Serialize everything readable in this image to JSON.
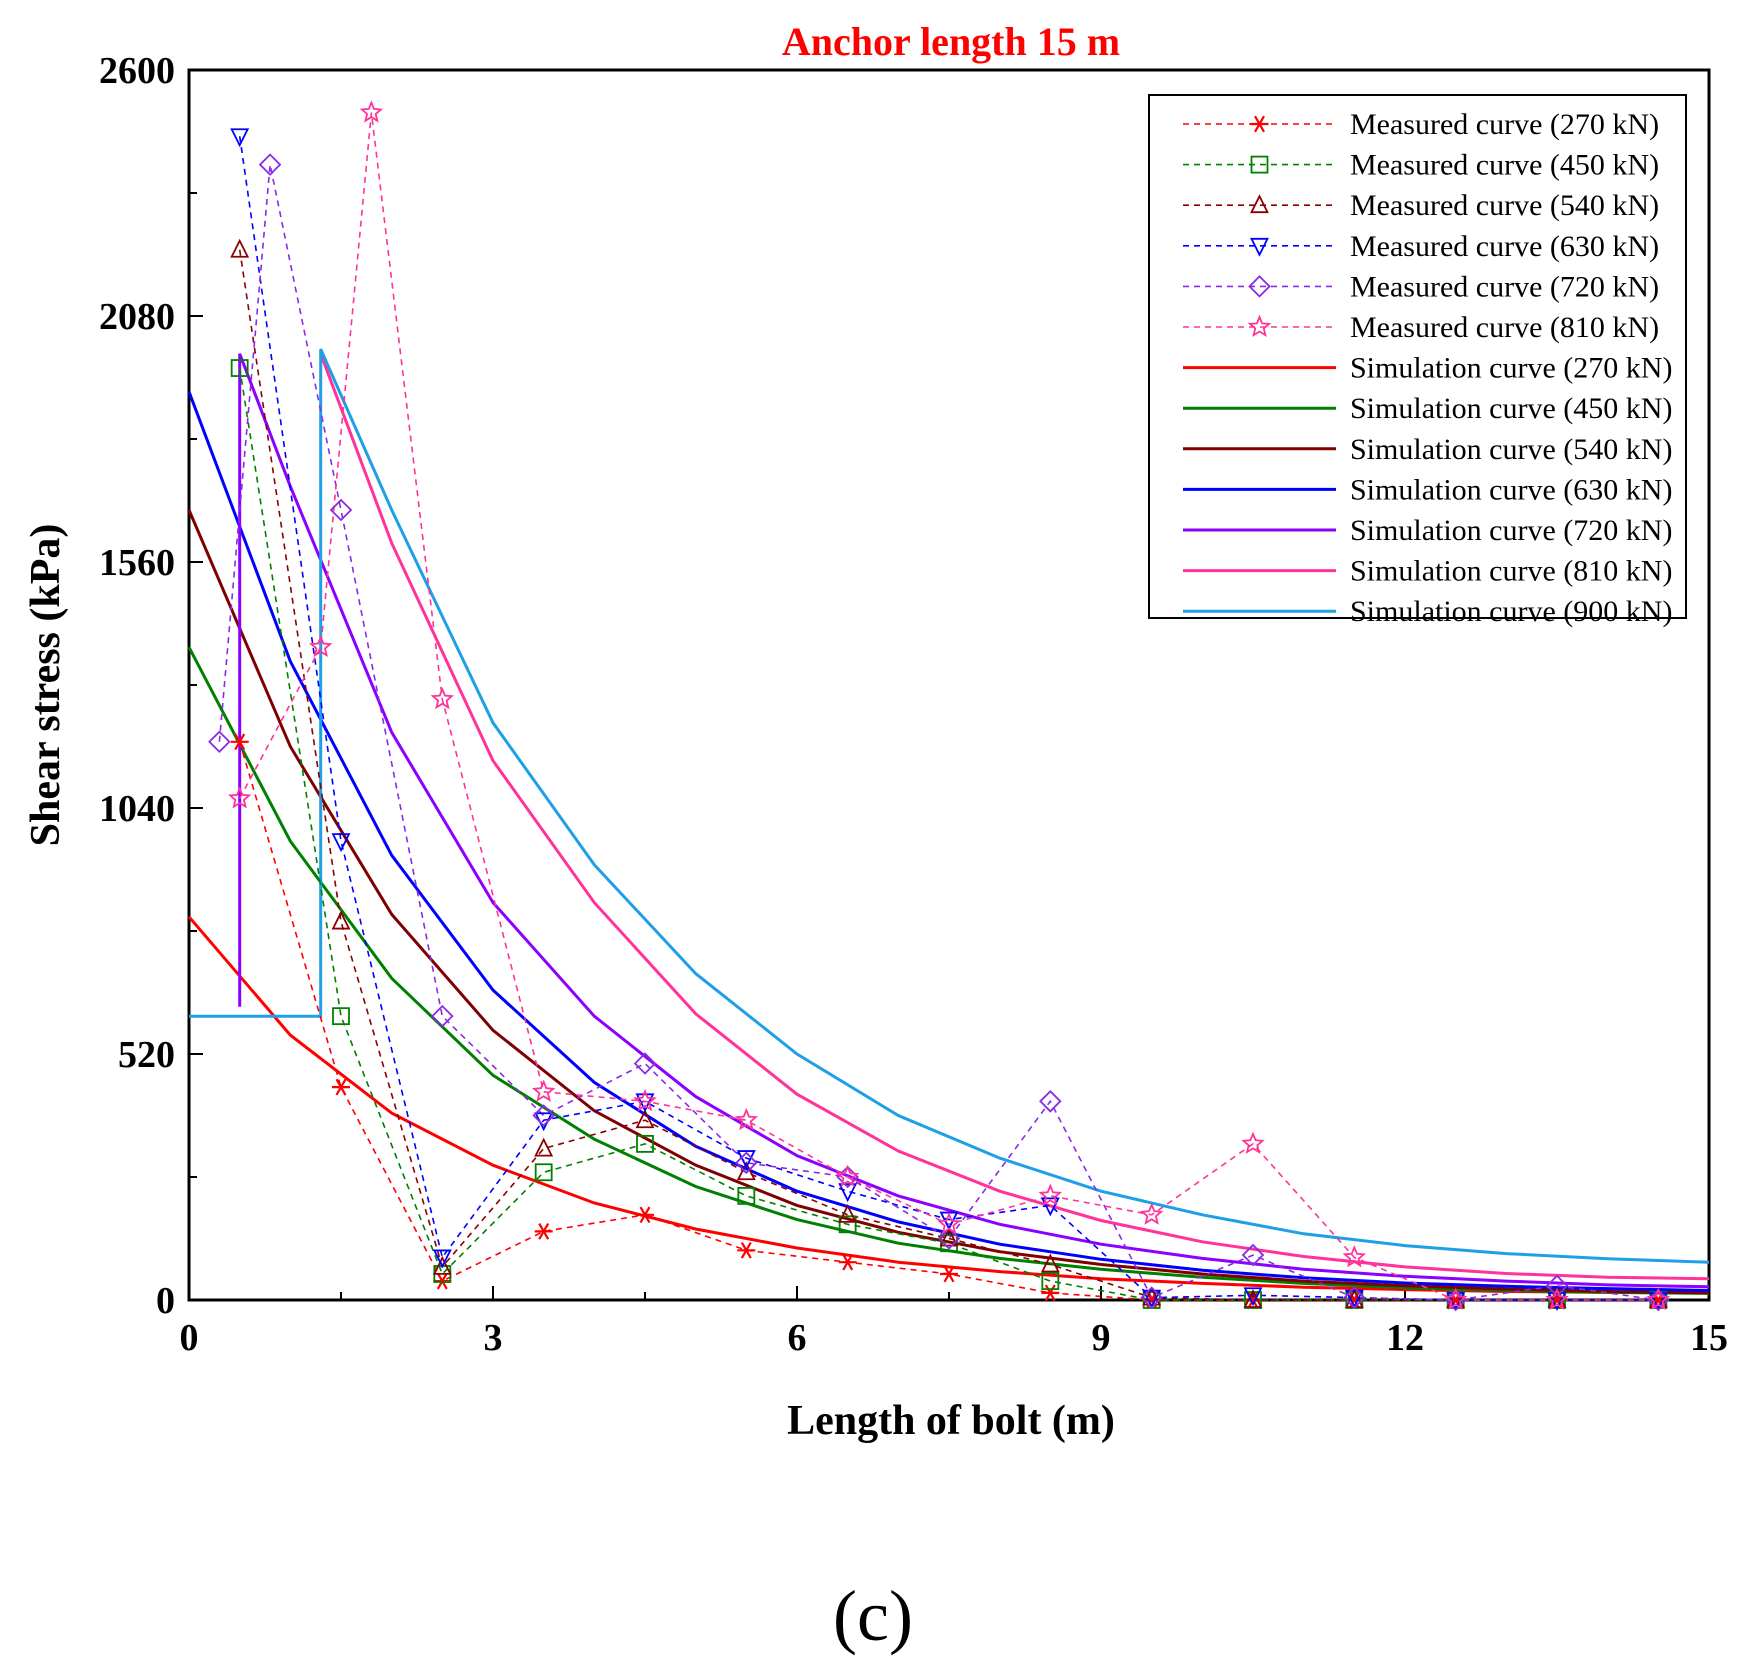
{
  "chart_data": {
    "type": "line",
    "title": "Anchor length 15 m",
    "xlabel": "Length of bolt (m)",
    "ylabel": "Shear stress (kPa)",
    "panel_label": "(c)",
    "xlim": [
      0,
      15
    ],
    "ylim": [
      0,
      2600
    ],
    "xticks": [
      0,
      3,
      6,
      9,
      12,
      15
    ],
    "yticks": [
      0,
      520,
      1040,
      1560,
      2080,
      2600
    ],
    "legend_position": "top-right",
    "series": [
      {
        "name": "Measured curve (270 kN)",
        "style": "dashed",
        "marker": "asterisk",
        "color": "#ff0000",
        "x": [
          0.5,
          1.5,
          2.5,
          3.5,
          4.5,
          5.5,
          6.5,
          7.5,
          8.5,
          9.5,
          10.5,
          11.5,
          12.5,
          13.5,
          14.5
        ],
        "y": [
          1180,
          450,
          40,
          145,
          180,
          105,
          80,
          55,
          15,
          0,
          0,
          0,
          0,
          0,
          0
        ]
      },
      {
        "name": "Measured curve (450 kN)",
        "style": "dashed",
        "marker": "square",
        "color": "#008000",
        "x": [
          0.5,
          1.5,
          2.5,
          3.5,
          4.5,
          5.5,
          6.5,
          7.5,
          8.5,
          9.5,
          10.5,
          11.5,
          12.5,
          13.5,
          14.5
        ],
        "y": [
          1970,
          600,
          55,
          270,
          330,
          220,
          160,
          120,
          40,
          0,
          0,
          0,
          0,
          0,
          0
        ]
      },
      {
        "name": "Measured curve (540 kN)",
        "style": "dashed",
        "marker": "triangle-up",
        "color": "#8b0000",
        "x": [
          0.5,
          1.5,
          2.5,
          3.5,
          4.5,
          5.5,
          6.5,
          7.5,
          8.5,
          9.5,
          10.5,
          11.5,
          12.5,
          13.5,
          14.5
        ],
        "y": [
          2220,
          800,
          70,
          320,
          380,
          270,
          180,
          130,
          75,
          5,
          0,
          0,
          0,
          0,
          0
        ]
      },
      {
        "name": "Measured curve (630 kN)",
        "style": "dashed",
        "marker": "triangle-down",
        "color": "#0000ff",
        "x": [
          0.5,
          1.5,
          2.5,
          3.5,
          4.5,
          5.5,
          6.5,
          7.5,
          8.5,
          9.5,
          10.5,
          11.5,
          12.5,
          13.5,
          14.5
        ],
        "y": [
          2460,
          970,
          90,
          380,
          420,
          300,
          230,
          170,
          200,
          5,
          10,
          5,
          0,
          0,
          0
        ]
      },
      {
        "name": "Measured curve (720 kN)",
        "style": "dashed",
        "marker": "diamond",
        "color": "#8a2be2",
        "x": [
          0.3,
          0.8,
          1.5,
          2.5,
          3.5,
          4.5,
          5.5,
          6.5,
          7.5,
          8.5,
          9.5,
          10.5,
          11.5,
          12.5,
          13.5,
          14.5
        ],
        "y": [
          1180,
          2400,
          1670,
          600,
          390,
          500,
          290,
          260,
          130,
          420,
          5,
          95,
          5,
          0,
          30,
          0
        ]
      },
      {
        "name": "Measured curve (810 kN)",
        "style": "dashed",
        "marker": "star",
        "color": "#ff3399",
        "x": [
          0.5,
          1.3,
          1.8,
          2.5,
          3.5,
          4.5,
          5.5,
          6.5,
          7.5,
          8.5,
          9.5,
          10.5,
          11.5,
          12.5,
          13.5,
          14.5
        ],
        "y": [
          1060,
          1380,
          2510,
          1270,
          440,
          420,
          380,
          260,
          160,
          220,
          180,
          330,
          90,
          0,
          0,
          0
        ]
      },
      {
        "name": "Simulation curve (270 kN)",
        "style": "solid",
        "color": "#ff0000",
        "x": [
          0,
          1,
          2,
          3,
          4,
          5,
          6,
          7,
          8,
          9,
          10,
          11,
          12,
          13,
          14,
          15
        ],
        "y": [
          810,
          560,
          395,
          285,
          205,
          150,
          110,
          80,
          60,
          45,
          35,
          27,
          22,
          18,
          16,
          15
        ]
      },
      {
        "name": "Simulation curve (450 kN)",
        "style": "solid",
        "color": "#008000",
        "x": [
          0,
          1,
          2,
          3,
          4,
          5,
          6,
          7,
          8,
          9,
          10,
          11,
          12,
          13,
          14,
          15
        ],
        "y": [
          1380,
          970,
          680,
          475,
          340,
          240,
          170,
          120,
          88,
          65,
          48,
          35,
          26,
          20,
          16,
          14
        ]
      },
      {
        "name": "Simulation curve (540 kN)",
        "style": "solid",
        "color": "#7f0000",
        "x": [
          0,
          1,
          2,
          3,
          4,
          5,
          6,
          7,
          8,
          9,
          10,
          11,
          12,
          13,
          14,
          15
        ],
        "y": [
          1670,
          1170,
          815,
          570,
          400,
          285,
          200,
          143,
          102,
          75,
          55,
          40,
          30,
          23,
          18,
          15
        ]
      },
      {
        "name": "Simulation curve (630 kN)",
        "style": "solid",
        "color": "#0000ff",
        "x": [
          0,
          1,
          2,
          3,
          4,
          5,
          6,
          7,
          8,
          9,
          10,
          11,
          12,
          13,
          14,
          15
        ],
        "y": [
          1920,
          1350,
          940,
          655,
          460,
          325,
          230,
          165,
          118,
          86,
          63,
          47,
          36,
          29,
          24,
          20
        ]
      },
      {
        "name": "Simulation curve (720 kN)",
        "style": "solid",
        "color": "#8b00ff",
        "x": [
          0.5,
          0.5,
          1,
          2,
          3,
          4,
          5,
          6,
          7,
          8,
          9,
          10,
          11,
          12,
          13,
          14,
          15
        ],
        "y": [
          620,
          2000,
          1720,
          1200,
          840,
          600,
          430,
          305,
          220,
          160,
          118,
          88,
          65,
          50,
          40,
          32,
          28
        ]
      },
      {
        "name": "Simulation curve (810 kN)",
        "style": "solid",
        "color": "#ff3399",
        "x": [
          1.3,
          2,
          3,
          4,
          5,
          6,
          7,
          8,
          9,
          10,
          11,
          12,
          13,
          14,
          15
        ],
        "y": [
          2000,
          1600,
          1140,
          840,
          605,
          435,
          315,
          230,
          168,
          123,
          92,
          70,
          56,
          48,
          45
        ]
      },
      {
        "name": "Simulation curve (900 kN)",
        "style": "solid",
        "color": "#1e9fe6",
        "x": [
          0,
          1.3,
          1.3,
          2,
          3,
          4,
          5,
          6,
          7,
          8,
          9,
          10,
          11,
          12,
          13,
          14,
          15
        ],
        "y": [
          600,
          600,
          2010,
          1670,
          1220,
          920,
          690,
          520,
          390,
          300,
          230,
          180,
          140,
          115,
          98,
          87,
          80
        ]
      }
    ]
  }
}
